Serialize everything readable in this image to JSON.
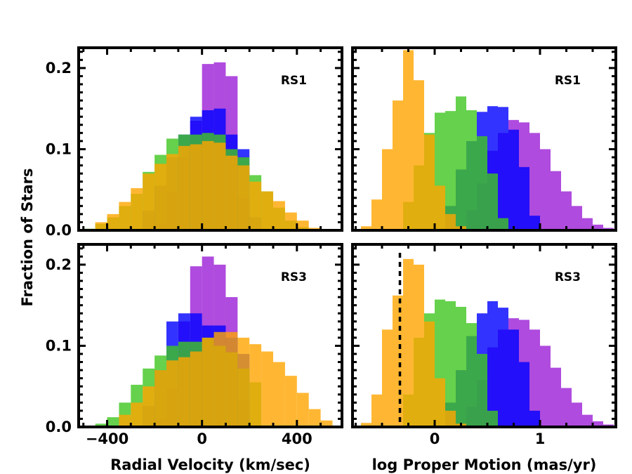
{
  "figure": {
    "ylabel": "Fraction of Stars",
    "colors": {
      "purple": "#9b1ed6",
      "blue": "#0000ff",
      "green": "#3ec51f",
      "orange": "#ffa500"
    }
  },
  "chart_data": [
    {
      "type": "bar",
      "panel": "top-left",
      "tag": "RS1",
      "title": "",
      "xlabel": "",
      "ylabel": "Fraction of Stars",
      "xlim": [
        -520,
        590
      ],
      "ylim": [
        0,
        0.225
      ],
      "bin_width": 50,
      "xticks": [],
      "yticks": [
        0.0,
        0.1,
        0.2
      ],
      "yticklabels": [
        "0.0",
        "0.1",
        "0.2"
      ],
      "series": [
        {
          "name": "purple",
          "color": "#9b1ed6",
          "x": [
            -175,
            -125,
            -75,
            -25,
            25,
            75,
            125,
            175
          ],
          "values": [
            0.008,
            0.048,
            0.09,
            0.135,
            0.205,
            0.207,
            0.19,
            0.04
          ]
        },
        {
          "name": "blue",
          "color": "#0000ff",
          "x": [
            -225,
            -175,
            -125,
            -75,
            -25,
            25,
            75,
            125,
            175,
            225
          ],
          "values": [
            0.024,
            0.055,
            0.09,
            0.118,
            0.14,
            0.148,
            0.15,
            0.118,
            0.1,
            0.016
          ]
        },
        {
          "name": "green",
          "color": "#3ec51f",
          "x": [
            -475,
            -425,
            -375,
            -325,
            -275,
            -225,
            -175,
            -125,
            -75,
            -25,
            25,
            75,
            125,
            175,
            225,
            275,
            325,
            375,
            425
          ],
          "values": [
            0.002,
            0.008,
            0.016,
            0.03,
            0.045,
            0.072,
            0.093,
            0.113,
            0.118,
            0.118,
            0.12,
            0.118,
            0.1,
            0.09,
            0.068,
            0.048,
            0.028,
            0.012,
            0.004
          ]
        },
        {
          "name": "orange",
          "color": "#ffa500",
          "x": [
            -425,
            -375,
            -325,
            -275,
            -225,
            -175,
            -125,
            -75,
            -25,
            25,
            75,
            125,
            175,
            225,
            275,
            325,
            375,
            425,
            475
          ],
          "values": [
            0.01,
            0.02,
            0.035,
            0.052,
            0.07,
            0.082,
            0.094,
            0.104,
            0.106,
            0.11,
            0.108,
            0.092,
            0.08,
            0.06,
            0.048,
            0.036,
            0.022,
            0.012,
            0.003
          ]
        }
      ]
    },
    {
      "type": "bar",
      "panel": "top-right",
      "tag": "RS1",
      "title": "",
      "xlabel": "",
      "ylabel": "",
      "xlim": [
        -0.78,
        1.72
      ],
      "ylim": [
        0,
        0.225
      ],
      "bin_width": 0.1,
      "xticks": [],
      "yticks": [
        0.0,
        0.1,
        0.2
      ],
      "yticklabels": [
        "",
        "",
        ""
      ],
      "series": [
        {
          "name": "purple",
          "color": "#9b1ed6",
          "x": [
            0.35,
            0.45,
            0.55,
            0.65,
            0.75,
            0.85,
            0.95,
            1.05,
            1.15,
            1.25,
            1.35,
            1.45,
            1.55,
            1.65
          ],
          "values": [
            0.025,
            0.058,
            0.098,
            0.12,
            0.136,
            0.133,
            0.12,
            0.1,
            0.073,
            0.048,
            0.03,
            0.015,
            0.007,
            0.003
          ]
        },
        {
          "name": "blue",
          "color": "#0000ff",
          "x": [
            0.15,
            0.25,
            0.35,
            0.45,
            0.55,
            0.65,
            0.75,
            0.85,
            0.95
          ],
          "values": [
            0.03,
            0.075,
            0.11,
            0.146,
            0.153,
            0.152,
            0.124,
            0.078,
            0.018
          ]
        },
        {
          "name": "green",
          "color": "#3ec51f",
          "x": [
            -0.25,
            -0.15,
            -0.05,
            0.05,
            0.15,
            0.25,
            0.35,
            0.45,
            0.55,
            0.65
          ],
          "values": [
            0.035,
            0.08,
            0.12,
            0.145,
            0.147,
            0.165,
            0.148,
            0.116,
            0.07,
            0.015
          ]
        },
        {
          "name": "orange",
          "color": "#ffa500",
          "x": [
            -0.65,
            -0.55,
            -0.45,
            -0.35,
            -0.25,
            -0.15,
            -0.05,
            0.05,
            0.15,
            0.25
          ],
          "values": [
            0.005,
            0.038,
            0.1,
            0.16,
            0.222,
            0.185,
            0.118,
            0.055,
            0.02,
            0.005
          ]
        }
      ]
    },
    {
      "type": "bar",
      "panel": "bottom-left",
      "tag": "RS3",
      "title": "",
      "xlabel": "Radial Velocity (km/sec)",
      "ylabel": "Fraction of Stars",
      "xlim": [
        -520,
        590
      ],
      "ylim": [
        0,
        0.225
      ],
      "bin_width": 50,
      "xticks": [
        -400,
        0,
        400
      ],
      "xticklabels": [
        "−400",
        "0",
        "400"
      ],
      "yticks": [
        0.0,
        0.1,
        0.2
      ],
      "yticklabels": [
        "0.0",
        "0.1",
        "0.2"
      ],
      "series": [
        {
          "name": "purple",
          "color": "#9b1ed6",
          "x": [
            -175,
            -125,
            -75,
            -25,
            25,
            75,
            125,
            175
          ],
          "values": [
            0.01,
            0.048,
            0.13,
            0.198,
            0.21,
            0.2,
            0.16,
            0.034
          ]
        },
        {
          "name": "blue",
          "color": "#0000ff",
          "x": [
            -225,
            -175,
            -125,
            -75,
            -25,
            25,
            75,
            125,
            175
          ],
          "values": [
            0.026,
            0.07,
            0.13,
            0.14,
            0.14,
            0.125,
            0.125,
            0.11,
            0.09
          ]
        },
        {
          "name": "green",
          "color": "#3ec51f",
          "x": [
            -425,
            -375,
            -325,
            -275,
            -225,
            -175,
            -125,
            -75,
            -25,
            25,
            75,
            125,
            175,
            225
          ],
          "values": [
            0.004,
            0.012,
            0.03,
            0.052,
            0.072,
            0.088,
            0.1,
            0.105,
            0.105,
            0.11,
            0.1,
            0.092,
            0.072,
            0.055
          ]
        },
        {
          "name": "orange",
          "color": "#ffa500",
          "x": [
            -325,
            -275,
            -225,
            -175,
            -125,
            -75,
            -25,
            25,
            75,
            125,
            175,
            225,
            275,
            325,
            375,
            425,
            475,
            525
          ],
          "values": [
            0.015,
            0.03,
            0.05,
            0.07,
            0.082,
            0.086,
            0.093,
            0.11,
            0.117,
            0.117,
            0.11,
            0.102,
            0.093,
            0.08,
            0.063,
            0.042,
            0.022,
            0.008
          ]
        }
      ]
    },
    {
      "type": "bar",
      "panel": "bottom-right",
      "tag": "RS3",
      "title": "",
      "xlabel": "log Proper Motion (mas/yr)",
      "ylabel": "",
      "xlim": [
        -0.78,
        1.72
      ],
      "ylim": [
        0,
        0.225
      ],
      "bin_width": 0.1,
      "xticks": [
        0,
        1
      ],
      "xticklabels": [
        "0",
        "1"
      ],
      "yticks": [
        0.0,
        0.1,
        0.2
      ],
      "yticklabels": [
        "",
        "",
        ""
      ],
      "vline": {
        "x": -0.33,
        "style": "dashed",
        "color": "#000000"
      },
      "series": [
        {
          "name": "purple",
          "color": "#9b1ed6",
          "x": [
            0.35,
            0.45,
            0.55,
            0.65,
            0.75,
            0.85,
            0.95,
            1.05,
            1.15,
            1.25,
            1.35,
            1.45,
            1.55,
            1.65
          ],
          "values": [
            0.025,
            0.058,
            0.098,
            0.12,
            0.134,
            0.132,
            0.12,
            0.1,
            0.073,
            0.048,
            0.03,
            0.015,
            0.007,
            0.003
          ]
        },
        {
          "name": "blue",
          "color": "#0000ff",
          "x": [
            0.15,
            0.25,
            0.35,
            0.45,
            0.55,
            0.65,
            0.75,
            0.85,
            0.95
          ],
          "values": [
            0.03,
            0.07,
            0.112,
            0.14,
            0.155,
            0.147,
            0.12,
            0.08,
            0.02
          ]
        },
        {
          "name": "green",
          "color": "#3ec51f",
          "x": [
            -0.25,
            -0.15,
            -0.05,
            0.05,
            0.15,
            0.25,
            0.35,
            0.45,
            0.55
          ],
          "values": [
            0.04,
            0.11,
            0.14,
            0.157,
            0.155,
            0.148,
            0.128,
            0.09,
            0.02
          ]
        },
        {
          "name": "orange",
          "color": "#ffa500",
          "x": [
            -0.65,
            -0.55,
            -0.45,
            -0.35,
            -0.25,
            -0.15,
            -0.05,
            0.05,
            0.15,
            0.25
          ],
          "values": [
            0.005,
            0.04,
            0.12,
            0.162,
            0.207,
            0.2,
            0.13,
            0.06,
            0.02,
            0.004
          ]
        }
      ]
    }
  ]
}
